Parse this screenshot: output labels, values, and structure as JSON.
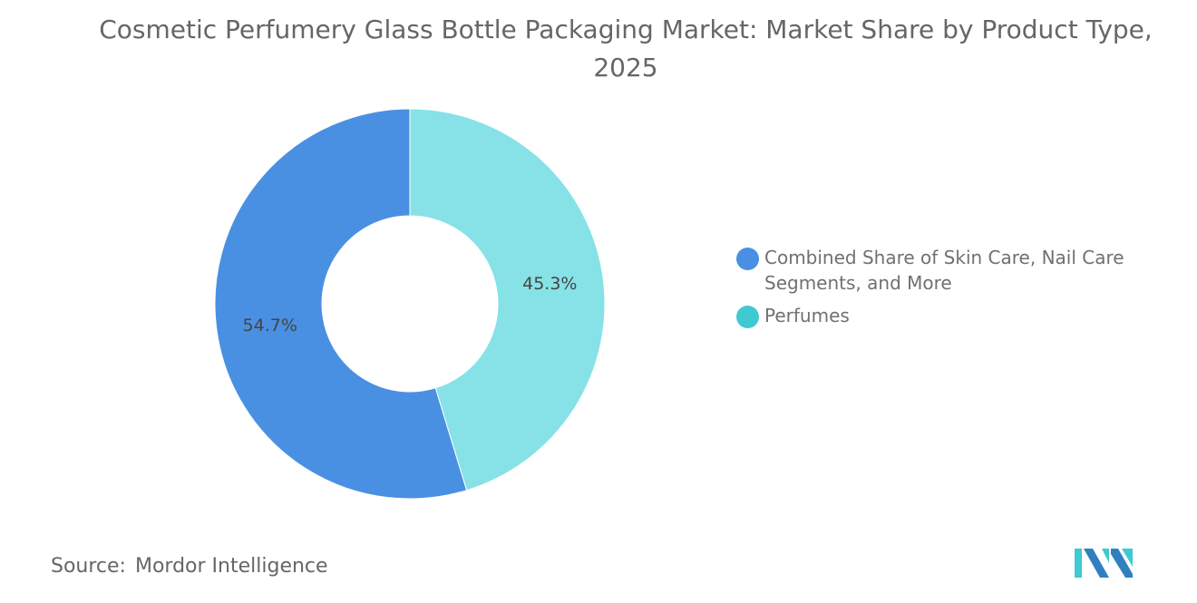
{
  "title": "Cosmetic Perfumery Glass Bottle Packaging Market: Market Share by Product Type, 2025",
  "source_label": "Source:",
  "source_value": "Mordor Intelligence",
  "logo_text": "Mordor Intelligence",
  "chart_data": {
    "type": "pie",
    "donut": true,
    "title": "Cosmetic Perfumery Glass Bottle Packaging Market: Market Share by Product Type, 2025",
    "legend_position": "right",
    "series": [
      {
        "name": "Perfumes",
        "value": 45.3,
        "label": "45.3%",
        "color": "#86E2E6",
        "legend_color": "#3EC9D3"
      },
      {
        "name": "Combined Share of Skin Care, Nail Care Segments, and More",
        "value": 54.7,
        "label": "54.7%",
        "color": "#4A90E2",
        "legend_color": "#4A90E2"
      }
    ]
  }
}
